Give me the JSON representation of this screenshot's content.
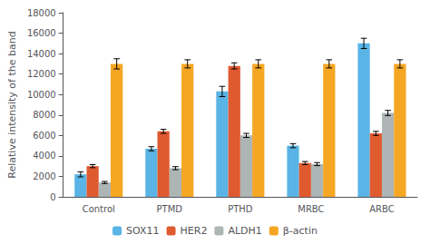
{
  "chart_data": {
    "type": "bar",
    "categories": [
      "Control",
      "PTMD",
      "PTHD",
      "MRBC",
      "ARBC"
    ],
    "series": [
      {
        "name": "SOX11",
        "color": "#5ab4e5",
        "values": [
          2200,
          4700,
          10300,
          5000,
          15000
        ],
        "errors": [
          250,
          200,
          500,
          200,
          500
        ]
      },
      {
        "name": "HER2",
        "color": "#e05a30",
        "values": [
          3000,
          6400,
          12800,
          3300,
          6200
        ],
        "errors": [
          150,
          200,
          300,
          150,
          200
        ]
      },
      {
        "name": "ALDH1",
        "color": "#adb5b5",
        "values": [
          1400,
          2800,
          6000,
          3200,
          8200
        ],
        "errors": [
          100,
          150,
          200,
          150,
          250
        ]
      },
      {
        "name": "β-actin",
        "color": "#f5a623",
        "values": [
          13000,
          13000,
          13000,
          13000,
          13000
        ],
        "errors": [
          500,
          400,
          400,
          400,
          400
        ]
      }
    ],
    "ylabel": "Relative intensity of the band",
    "ylim": [
      0,
      18000
    ],
    "yticks": [
      0,
      2000,
      4000,
      6000,
      8000,
      10000,
      12000,
      14000,
      16000,
      18000
    ],
    "grid": false,
    "legend": "bottom"
  }
}
